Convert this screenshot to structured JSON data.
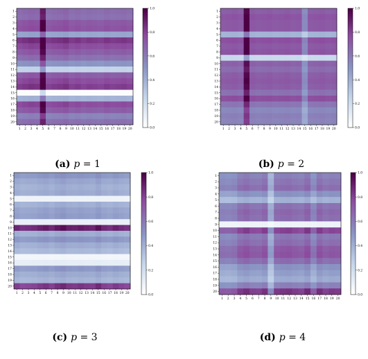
{
  "figure": {
    "colorscale": {
      "low": "#ffffff",
      "mid1": "#c4d5ea",
      "mid2": "#8a95c4",
      "mid3": "#8c4b9e",
      "high": "#4d0045"
    },
    "panels": [
      {
        "id": "a",
        "caption_tag": "(a)",
        "caption_var": "p",
        "caption_eq": "=",
        "caption_val": "1"
      },
      {
        "id": "b",
        "caption_tag": "(b)",
        "caption_var": "p",
        "caption_eq": "=",
        "caption_val": "2"
      },
      {
        "id": "c",
        "caption_tag": "(c)",
        "caption_var": "p",
        "caption_eq": "=",
        "caption_val": "3"
      },
      {
        "id": "d",
        "caption_tag": "(d)",
        "caption_var": "p",
        "caption_eq": "=",
        "caption_val": "4"
      }
    ]
  },
  "chart_data": [
    {
      "type": "heatmap",
      "panel": "(a) p = 1",
      "rows": [
        "1",
        "2",
        "3",
        "4",
        "5",
        "6",
        "7",
        "8",
        "9",
        "10",
        "11",
        "12",
        "13",
        "14",
        "15",
        "16",
        "17",
        "18",
        "19",
        "20"
      ],
      "cols": [
        "1",
        "2",
        "3",
        "4",
        "5",
        "6",
        "7",
        "8",
        "9",
        "10",
        "11",
        "12",
        "13",
        "14",
        "15",
        "16",
        "17",
        "18",
        "19",
        "20"
      ],
      "row_weights": [
        0.72,
        0.7,
        0.8,
        0.82,
        0.48,
        0.92,
        0.85,
        0.78,
        0.7,
        0.55,
        0.28,
        0.78,
        0.85,
        0.9,
        0.02,
        0.42,
        0.85,
        0.78,
        0.62,
        0.7
      ],
      "col_weights": [
        0.82,
        0.86,
        0.9,
        0.88,
        1.0,
        0.8,
        0.84,
        0.86,
        0.9,
        0.8,
        0.84,
        0.78,
        0.82,
        0.8,
        0.78,
        0.84,
        0.8,
        0.82,
        0.84,
        0.8
      ],
      "colorbar": {
        "min": 0.0,
        "max": 1.0,
        "ticks": [
          "0.0",
          "0.2",
          "0.4",
          "0.6",
          "0.8",
          "1.0"
        ]
      }
    },
    {
      "type": "heatmap",
      "panel": "(b) p = 2",
      "rows": [
        "1",
        "2",
        "3",
        "4",
        "5",
        "6",
        "7",
        "8",
        "9",
        "10",
        "11",
        "12",
        "13",
        "14",
        "15",
        "16",
        "17",
        "18",
        "19",
        "20"
      ],
      "cols": [
        "1",
        "2",
        "3",
        "4",
        "5",
        "6",
        "7",
        "8",
        "9",
        "10",
        "11",
        "12",
        "13",
        "14",
        "15",
        "16",
        "17",
        "18",
        "19",
        "20"
      ],
      "row_weights": [
        0.78,
        0.82,
        0.8,
        0.8,
        0.42,
        0.84,
        0.8,
        0.82,
        0.25,
        0.76,
        0.72,
        0.78,
        0.8,
        0.78,
        0.7,
        0.84,
        0.68,
        0.6,
        0.64,
        0.62
      ],
      "col_weights": [
        0.8,
        0.82,
        0.84,
        0.8,
        1.0,
        0.84,
        0.8,
        0.82,
        0.84,
        0.8,
        0.82,
        0.84,
        0.8,
        0.82,
        0.35,
        0.8,
        0.82,
        0.84,
        0.8,
        0.82
      ],
      "colorbar": {
        "min": 0.0,
        "max": 1.0,
        "ticks": [
          "0.0",
          "0.2",
          "0.4",
          "0.6",
          "0.8",
          "1.0"
        ]
      }
    },
    {
      "type": "heatmap",
      "panel": "(c) p = 3",
      "rows": [
        "1",
        "2",
        "3",
        "4",
        "5",
        "6",
        "7",
        "8",
        "9",
        "10",
        "11",
        "12",
        "13",
        "14",
        "15",
        "16",
        "17",
        "18",
        "19",
        "20"
      ],
      "cols": [
        "1",
        "2",
        "3",
        "4",
        "5",
        "6",
        "7",
        "8",
        "9",
        "10",
        "11",
        "12",
        "13",
        "14",
        "15",
        "16",
        "17",
        "18",
        "19",
        "20"
      ],
      "row_weights": [
        0.55,
        0.48,
        0.44,
        0.46,
        0.08,
        0.44,
        0.5,
        0.52,
        0.1,
        1.0,
        0.45,
        0.55,
        0.45,
        0.4,
        0.06,
        0.12,
        0.54,
        0.46,
        0.42,
        0.92
      ],
      "col_weights": [
        0.78,
        0.7,
        0.72,
        0.74,
        0.8,
        0.84,
        0.76,
        0.86,
        0.92,
        0.82,
        0.8,
        0.84,
        0.8,
        0.78,
        0.9,
        0.76,
        0.72,
        0.8,
        0.74,
        0.7
      ],
      "colorbar": {
        "min": 0.0,
        "max": 1.0,
        "ticks": [
          "0.0",
          "0.2",
          "0.4",
          "0.6",
          "0.8",
          "1.0"
        ]
      }
    },
    {
      "type": "heatmap",
      "panel": "(d) p = 4",
      "rows": [
        "1",
        "2",
        "3",
        "4",
        "5",
        "6",
        "7",
        "8",
        "9",
        "10",
        "11",
        "12",
        "13",
        "14",
        "15",
        "16",
        "17",
        "18",
        "19",
        "20"
      ],
      "cols": [
        "1",
        "2",
        "3",
        "4",
        "5",
        "6",
        "7",
        "8",
        "9",
        "10",
        "11",
        "12",
        "13",
        "14",
        "15",
        "16",
        "17",
        "18",
        "19",
        "20"
      ],
      "row_weights": [
        0.62,
        0.66,
        0.7,
        0.55,
        0.42,
        0.68,
        0.72,
        0.7,
        0.08,
        0.86,
        0.66,
        0.7,
        0.78,
        0.8,
        0.7,
        0.55,
        0.5,
        0.45,
        0.62,
        0.9
      ],
      "col_weights": [
        0.62,
        0.6,
        0.64,
        0.85,
        0.92,
        0.82,
        0.8,
        0.9,
        0.2,
        0.85,
        0.88,
        0.9,
        0.84,
        0.8,
        0.95,
        0.6,
        0.92,
        0.8,
        0.86,
        0.84
      ],
      "colorbar": {
        "min": 0.0,
        "max": 1.0,
        "ticks": [
          "0.0",
          "0.2",
          "0.4",
          "0.6",
          "0.8",
          "1.0"
        ]
      }
    }
  ]
}
